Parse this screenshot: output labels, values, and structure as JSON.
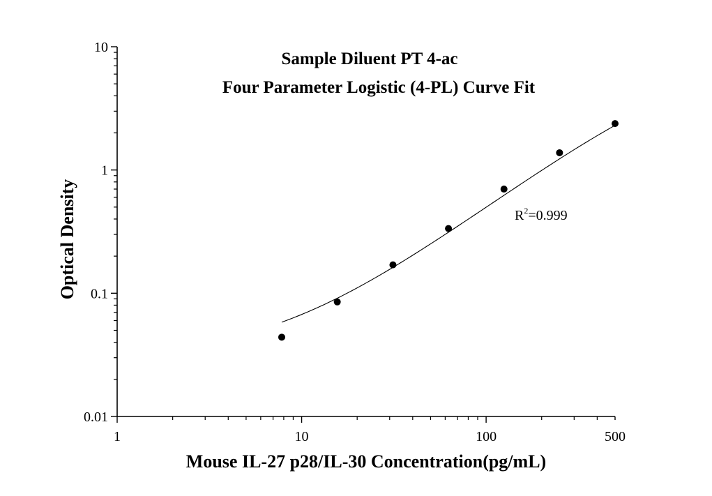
{
  "chart_data": {
    "type": "scatter",
    "title": "Sample Diluent PT 4-ac",
    "subtitle": "Four Parameter Logistic (4-PL) Curve Fit",
    "xlabel": "Mouse IL-27 p28/IL-30 Concentration(pg/mL)",
    "ylabel": "Optical Density",
    "x_scale": "log",
    "y_scale": "log",
    "xlim": [
      1,
      500
    ],
    "ylim": [
      0.01,
      10
    ],
    "x_ticks": [
      {
        "value": 1,
        "label": "1"
      },
      {
        "value": 10,
        "label": "10"
      },
      {
        "value": 100,
        "label": "100"
      },
      {
        "value": 500,
        "label": "500"
      }
    ],
    "y_ticks": [
      {
        "value": 0.01,
        "label": "0.01"
      },
      {
        "value": 0.1,
        "label": "0.1"
      },
      {
        "value": 1,
        "label": "1"
      },
      {
        "value": 10,
        "label": "10"
      }
    ],
    "series": [
      {
        "x": [
          7.8,
          15.6,
          31.25,
          62.5,
          125,
          250,
          500
        ],
        "y": [
          0.044,
          0.085,
          0.17,
          0.335,
          0.7,
          1.38,
          2.38
        ]
      }
    ],
    "fit_curve": {
      "model": "4-PL",
      "a": 0.03,
      "b": 1.12,
      "c": 1400,
      "d": 9.5,
      "x_range": [
        7.8,
        500
      ]
    },
    "annotation": {
      "base": "R",
      "superscript": "2",
      "text": "=0.999"
    },
    "colors": {
      "points": "#000000",
      "curve": "#000000",
      "axes": "#000000"
    }
  }
}
